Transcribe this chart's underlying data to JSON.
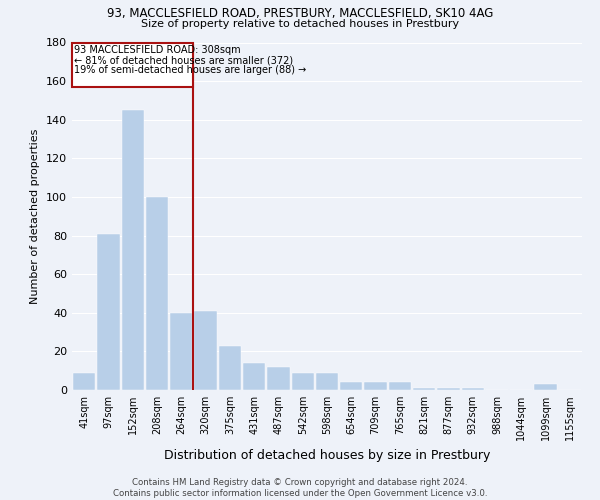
{
  "title_line1": "93, MACCLESFIELD ROAD, PRESTBURY, MACCLESFIELD, SK10 4AG",
  "title_line2": "Size of property relative to detached houses in Prestbury",
  "xlabel": "Distribution of detached houses by size in Prestbury",
  "ylabel": "Number of detached properties",
  "categories": [
    "41sqm",
    "97sqm",
    "152sqm",
    "208sqm",
    "264sqm",
    "320sqm",
    "375sqm",
    "431sqm",
    "487sqm",
    "542sqm",
    "598sqm",
    "654sqm",
    "709sqm",
    "765sqm",
    "821sqm",
    "877sqm",
    "932sqm",
    "988sqm",
    "1044sqm",
    "1099sqm",
    "1155sqm"
  ],
  "values": [
    9,
    81,
    145,
    100,
    40,
    41,
    23,
    14,
    12,
    9,
    9,
    4,
    4,
    4,
    1,
    1,
    1,
    0,
    0,
    3,
    0
  ],
  "bar_color": "#b8cfe8",
  "bar_edgecolor": "#b8cfe8",
  "reference_line_label": "93 MACCLESFIELD ROAD: 308sqm",
  "annotation_line1": "← 81% of detached houses are smaller (372)",
  "annotation_line2": "19% of semi-detached houses are larger (88) →",
  "ref_line_color": "#aa1111",
  "box_edgecolor": "#aa1111",
  "ylim": [
    0,
    180
  ],
  "yticks": [
    0,
    20,
    40,
    60,
    80,
    100,
    120,
    140,
    160,
    180
  ],
  "background_color": "#eef2f9",
  "grid_color": "#ffffff",
  "footer": "Contains HM Land Registry data © Crown copyright and database right 2024.\nContains public sector information licensed under the Open Government Licence v3.0."
}
